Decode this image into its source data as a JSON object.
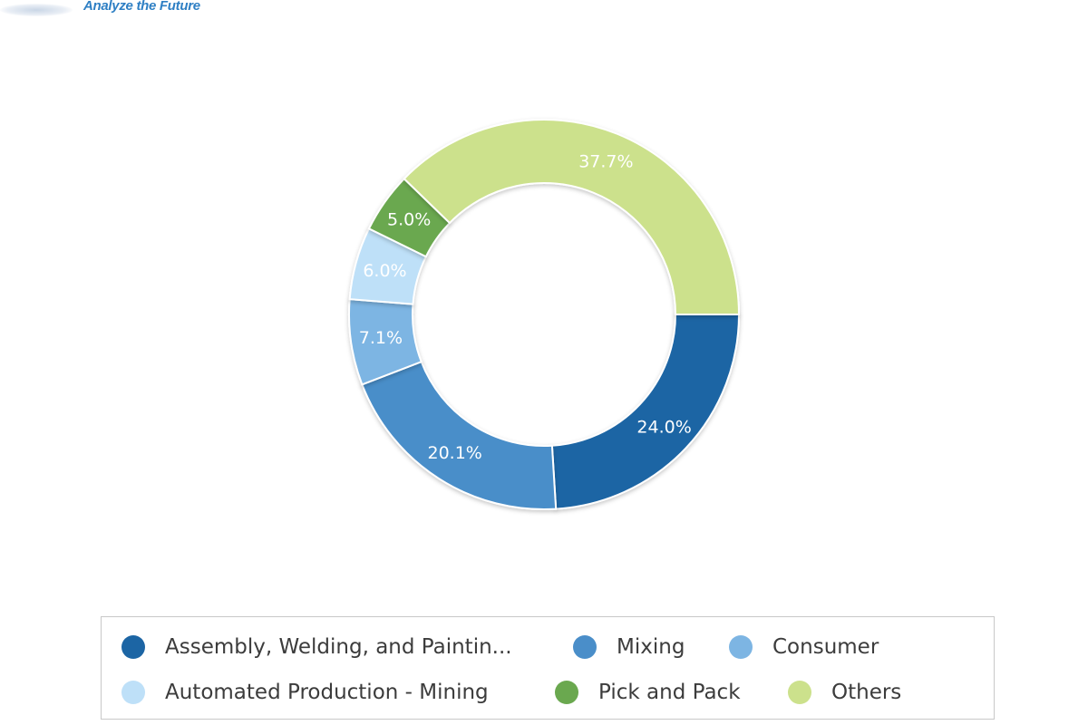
{
  "brand": {
    "tagline": "Analyze the Future"
  },
  "chart_data": {
    "type": "pie",
    "variant": "donut",
    "slices": [
      {
        "label": "Assembly, Welding, and Paintin...",
        "value": 24.0,
        "value_label": "24.0%",
        "color": "#1c65a4"
      },
      {
        "label": "Mixing",
        "value": 20.1,
        "value_label": "20.1%",
        "color": "#4a8ec9"
      },
      {
        "label": "Consumer",
        "value": 7.1,
        "value_label": "7.1%",
        "color": "#7db5e3"
      },
      {
        "label": "Automated Production - Mining",
        "value": 6.0,
        "value_label": "6.0%",
        "color": "#bee0f8"
      },
      {
        "label": "Pick and Pack",
        "value": 5.0,
        "value_label": "5.0%",
        "color": "#6aa84f"
      },
      {
        "label": "Others",
        "value": 37.7,
        "value_label": "37.7%",
        "color": "#cce18c"
      }
    ],
    "legend_position": "bottom"
  }
}
